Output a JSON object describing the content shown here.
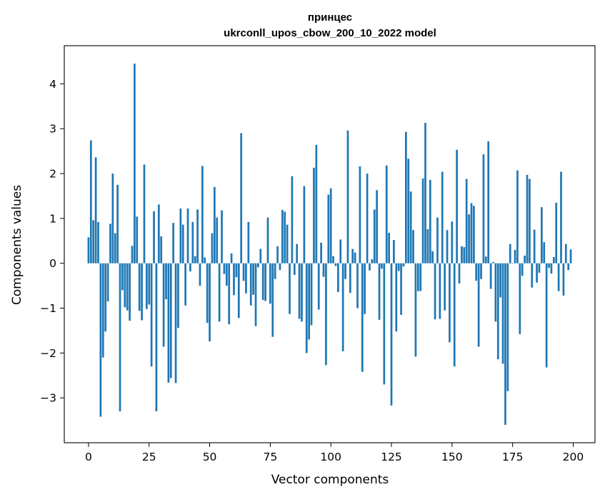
{
  "chart_data": {
    "type": "bar",
    "title_lines": [
      "принцес",
      "ukrconll_upos_cbow_200_10_2022 model"
    ],
    "xlabel": "Vector components",
    "ylabel": "Components values",
    "xlim": [
      -10,
      209
    ],
    "ylim": [
      -4.0,
      4.85
    ],
    "xticks": [
      0,
      25,
      50,
      75,
      100,
      125,
      150,
      175,
      200
    ],
    "yticks": [
      -3,
      -2,
      -1,
      0,
      1,
      2,
      3,
      4
    ],
    "ytick_labels": [
      "−3",
      "−2",
      "−1",
      "0",
      "1",
      "2",
      "3",
      "4"
    ],
    "grid": false,
    "bar_color": "#1f77b4",
    "values": [
      0.58,
      2.74,
      0.96,
      2.36,
      0.92,
      -3.42,
      -2.1,
      -1.52,
      -0.85,
      0.88,
      2.0,
      0.67,
      1.75,
      -3.3,
      -0.6,
      -0.98,
      -1.05,
      -1.28,
      0.39,
      4.45,
      1.04,
      -1.06,
      -1.27,
      2.2,
      -1.02,
      -0.92,
      -2.3,
      1.16,
      -3.3,
      1.31,
      0.6,
      -1.86,
      -0.8,
      -2.66,
      -2.56,
      0.9,
      -2.67,
      -1.44,
      1.22,
      0.86,
      -0.94,
      1.22,
      -0.18,
      0.92,
      0.16,
      1.2,
      -0.5,
      2.17,
      0.13,
      -1.33,
      -1.74,
      0.67,
      1.7,
      1.02,
      -1.3,
      1.18,
      -0.24,
      -0.5,
      -1.36,
      0.22,
      -0.71,
      -0.31,
      -1.22,
      2.9,
      -0.39,
      -0.67,
      0.92,
      -0.94,
      -0.7,
      -1.4,
      -0.09,
      0.32,
      -0.82,
      -0.84,
      1.02,
      -0.9,
      -1.64,
      -0.35,
      0.38,
      -0.15,
      1.19,
      1.15,
      0.86,
      -1.13,
      1.94,
      -0.26,
      0.43,
      -1.24,
      -1.3,
      1.72,
      -2.0,
      -1.7,
      -1.38,
      2.13,
      2.64,
      -1.03,
      0.46,
      -0.3,
      -2.27,
      1.53,
      1.67,
      0.16,
      -0.06,
      -0.64,
      0.53,
      -1.96,
      -0.35,
      2.96,
      -0.66,
      0.32,
      0.24,
      -1.0,
      2.16,
      -2.42,
      -1.13,
      2.0,
      -0.16,
      0.09,
      1.2,
      1.63,
      -1.26,
      -0.12,
      -2.7,
      2.18,
      0.68,
      -3.17,
      0.52,
      -1.52,
      -0.17,
      -1.15,
      -0.07,
      2.93,
      2.33,
      1.6,
      0.74,
      -2.08,
      -0.62,
      -0.62,
      1.89,
      3.13,
      0.76,
      1.86,
      0.27,
      -1.25,
      1.02,
      -1.24,
      2.04,
      -1.05,
      0.74,
      -1.76,
      0.93,
      -2.3,
      2.53,
      -0.45,
      0.38,
      0.36,
      1.88,
      1.09,
      1.34,
      1.28,
      -0.39,
      -1.86,
      -0.35,
      2.43,
      0.15,
      2.72,
      -0.57,
      0.03,
      -1.3,
      -2.14,
      -0.76,
      -2.24,
      -3.6,
      -2.85,
      0.43,
      -0.01,
      0.3,
      2.07,
      -1.58,
      -0.28,
      0.17,
      1.97,
      1.88,
      -0.54,
      0.75,
      -0.43,
      -0.21,
      1.25,
      0.47,
      -2.32,
      -0.1,
      -0.23,
      0.14,
      1.35,
      -0.62,
      2.04,
      -0.72,
      0.43,
      -0.15,
      0.31
    ]
  }
}
